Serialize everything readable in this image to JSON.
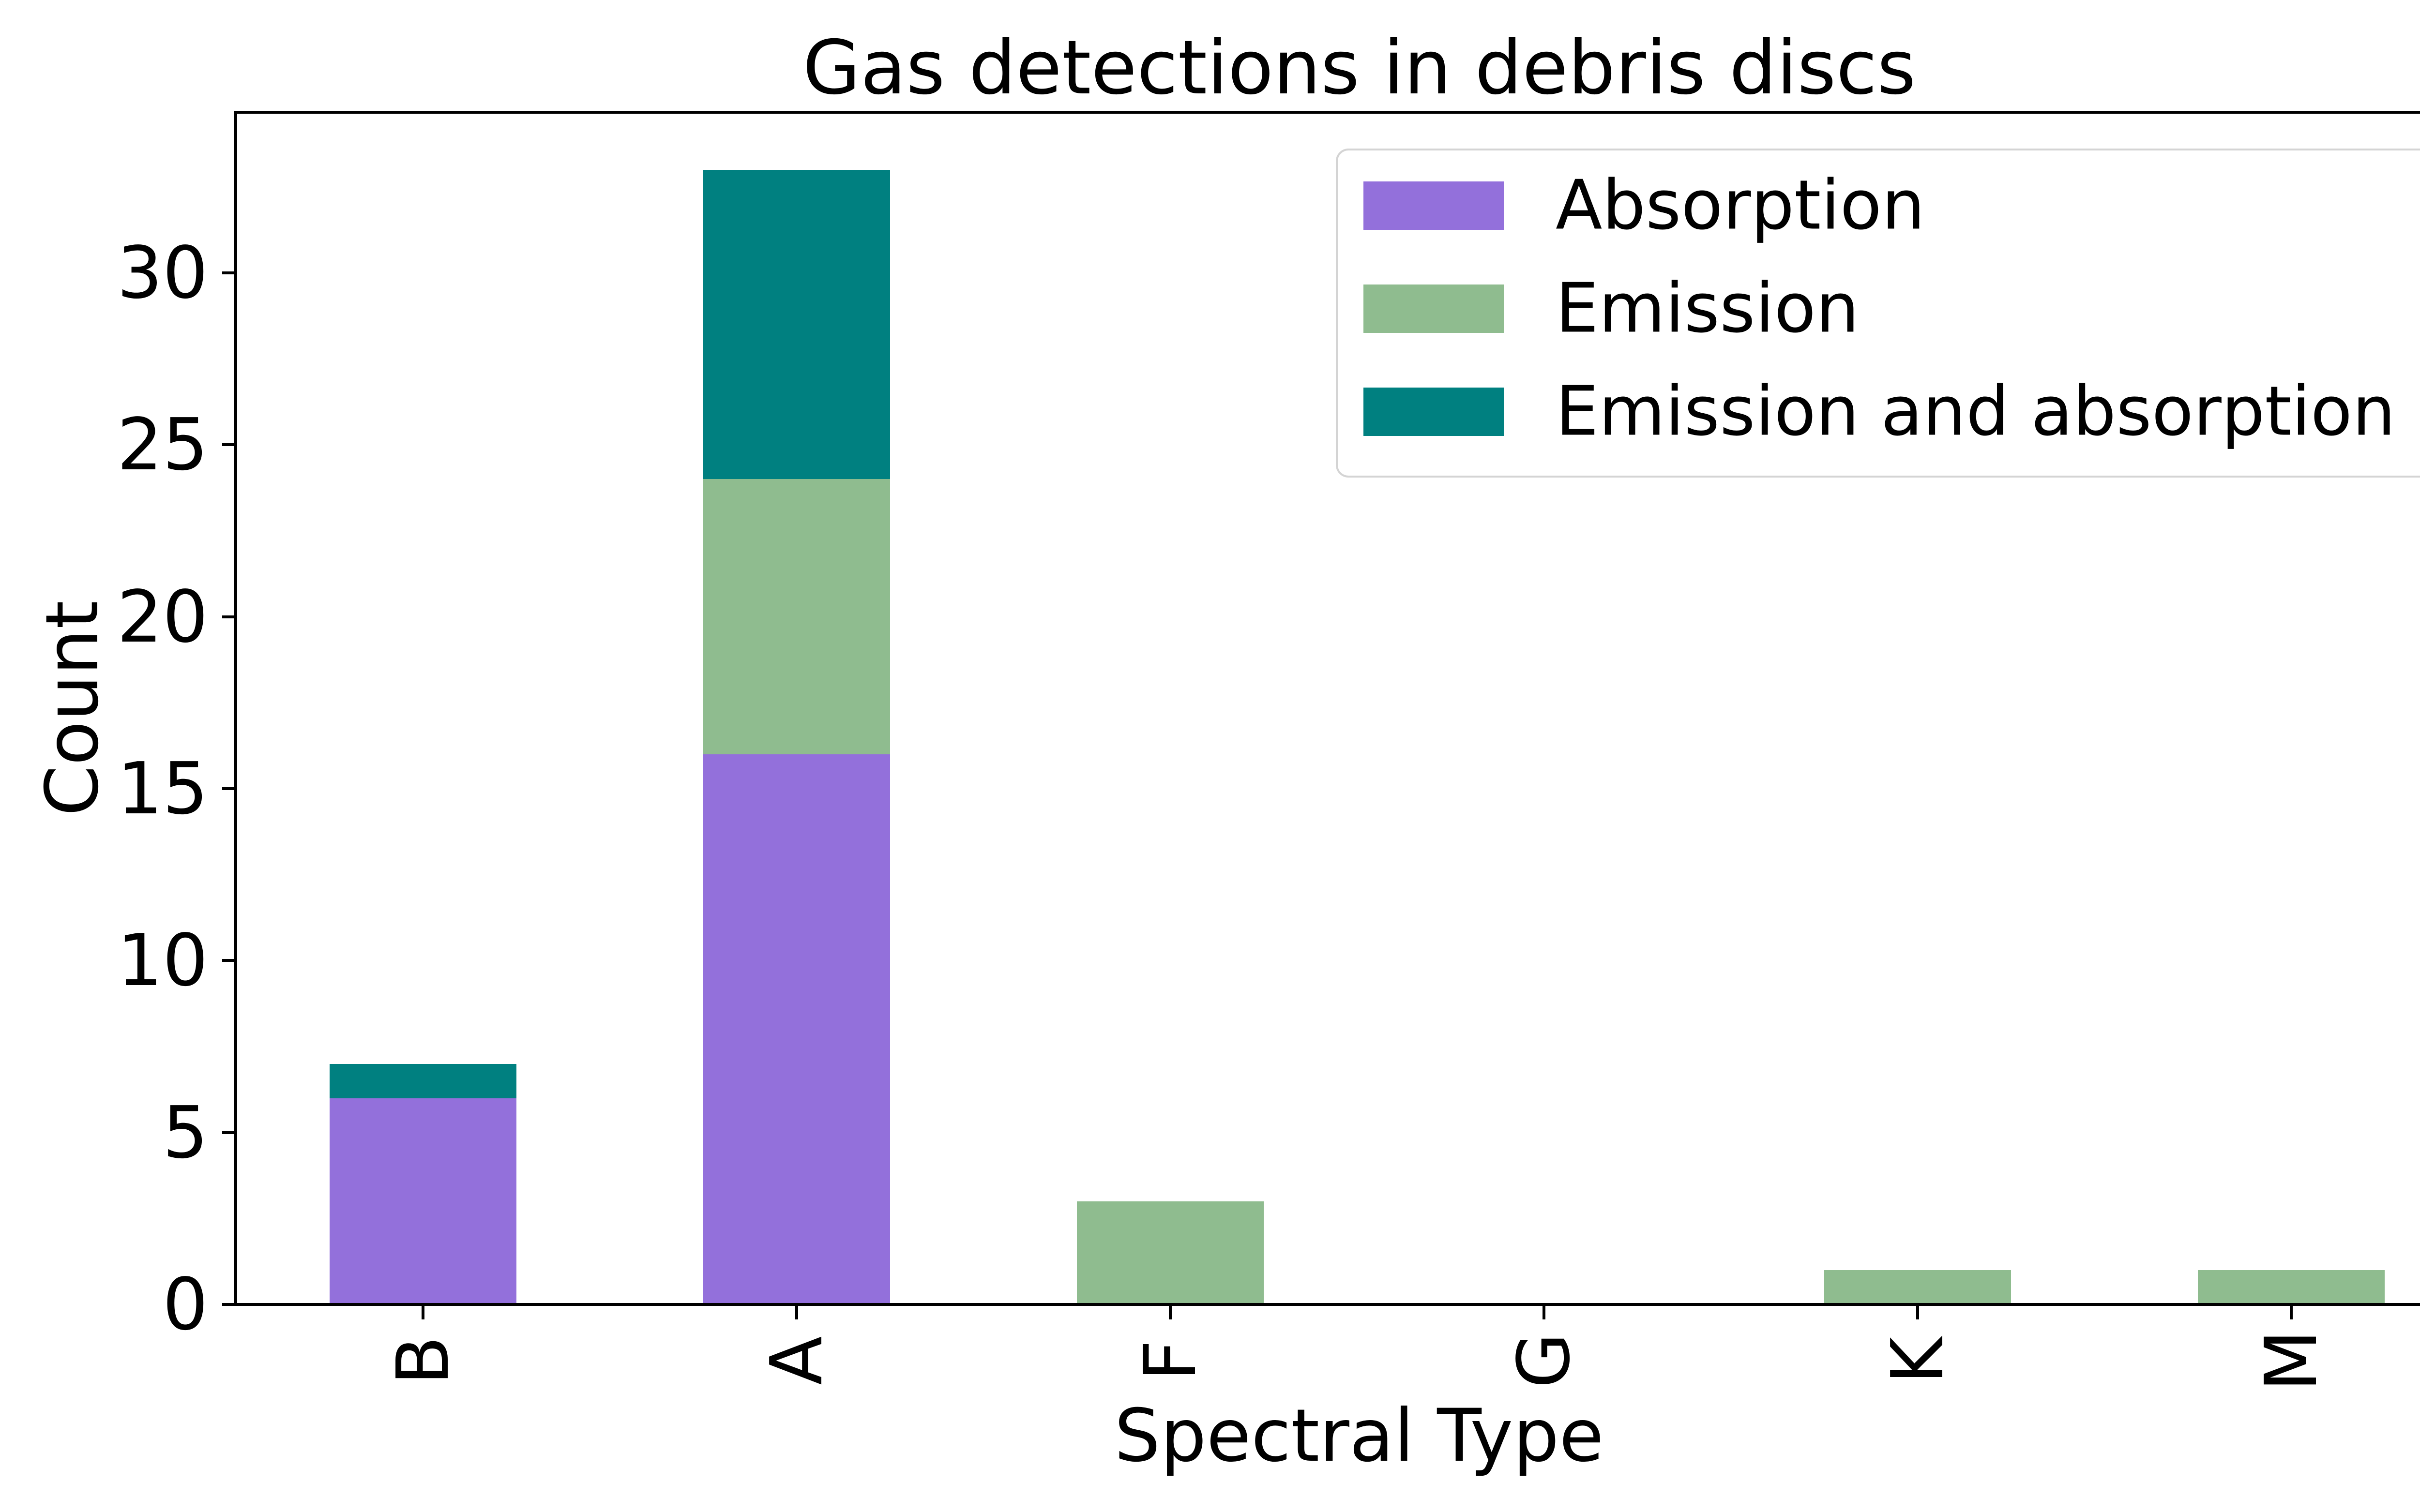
{
  "figure_title": "Gas detections in debris discs",
  "axes": {
    "ylabel": "Count",
    "xlabel": "Spectral Type"
  },
  "chart_data": {
    "type": "bar",
    "stacked": true,
    "title": "Gas detections in debris discs",
    "xlabel": "Spectral Type",
    "ylabel": "Count",
    "categories": [
      "B",
      "A",
      "F",
      "G",
      "K",
      "M"
    ],
    "series": [
      {
        "name": "Absorption",
        "color": "#9370DB",
        "values": [
          6,
          16,
          0,
          0,
          0,
          0
        ]
      },
      {
        "name": "Emission",
        "color": "#8FBC8F",
        "values": [
          0,
          8,
          3,
          0,
          1,
          1
        ]
      },
      {
        "name": "Emission and absorption",
        "color": "#008080",
        "values": [
          1,
          9,
          0,
          0,
          0,
          0
        ]
      }
    ],
    "totals_per_category": [
      7,
      33,
      3,
      0,
      1,
      1
    ],
    "ylim": [
      0,
      34.65
    ],
    "yticks": [
      0,
      5,
      10,
      15,
      20,
      25,
      30
    ],
    "grid": false,
    "legend_position": "upper right",
    "x_tick_rotation": 90,
    "background_color": "#ffffff",
    "spine_color": "#000000",
    "legend_border_color": "#d4d4d4"
  }
}
